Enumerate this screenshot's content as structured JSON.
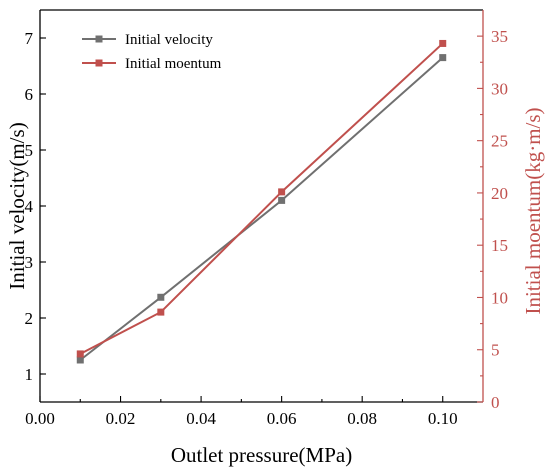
{
  "chart_data": {
    "type": "line",
    "xlabel": "Outlet pressure(MPa)",
    "ylabel_left": "Initial velocity(m/s)",
    "ylabel_right": "Initial moentum(kg·m/s)",
    "xlim": [
      0.0,
      0.11
    ],
    "ylim_left": [
      0.5,
      7.5
    ],
    "ylim_right": [
      0,
      37.5
    ],
    "xticks": [
      0.0,
      0.02,
      0.04,
      0.06,
      0.08,
      0.1
    ],
    "xtick_labels": [
      "0.00",
      "0.02",
      "0.04",
      "0.06",
      "0.08",
      "0.10"
    ],
    "yticks_left": [
      1,
      2,
      3,
      4,
      5,
      6,
      7
    ],
    "yticks_right": [
      0,
      5,
      10,
      15,
      20,
      25,
      30,
      35
    ],
    "grid": false,
    "legend_position": "top-left",
    "series": [
      {
        "name": "Initial velocity",
        "axis": "left",
        "color": "#707070",
        "marker": "square",
        "x": [
          0.01,
          0.03,
          0.06,
          0.1
        ],
        "y": [
          1.25,
          2.37,
          4.1,
          6.65
        ]
      },
      {
        "name": "Initial moentum",
        "axis": "right",
        "color": "#c0504d",
        "marker": "square",
        "x": [
          0.01,
          0.03,
          0.06,
          0.1
        ],
        "y": [
          4.6,
          8.6,
          20.1,
          34.3
        ]
      }
    ]
  }
}
